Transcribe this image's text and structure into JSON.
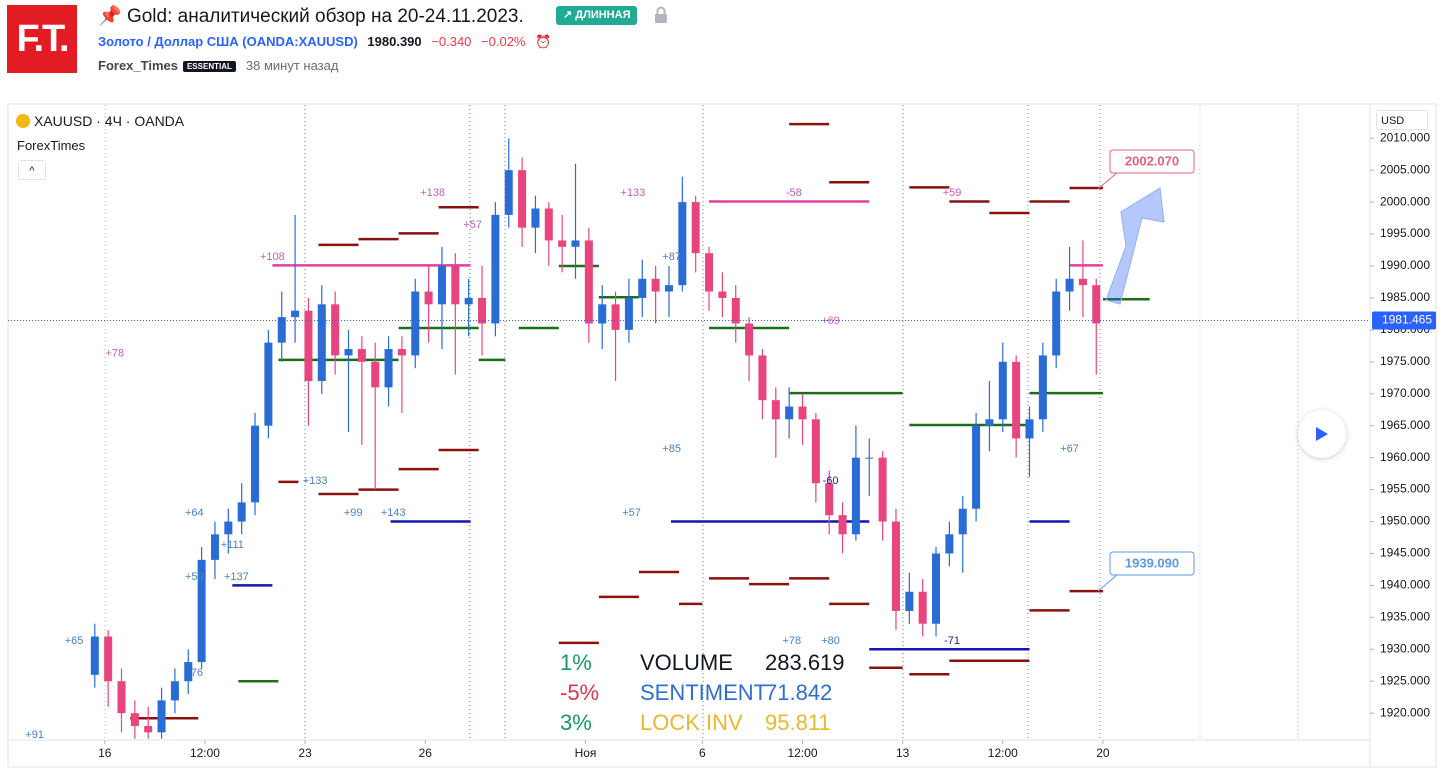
{
  "header": {
    "logo": "F.T.",
    "title": "Gold: аналитический обзор на 20-24.11.2023.",
    "badge": "ДЛИННАЯ",
    "symbol_name": "Золото / Доллар США",
    "symbol_code": "(OANDA:XAUUSD)",
    "price": "1980.390",
    "change": "−0.340",
    "change_pct": "−0.02%",
    "author": "Forex_Times",
    "author_badge": "ESSENTIAL",
    "time": "38 минут назад"
  },
  "chart_data": {
    "type": "candlestick",
    "legend": "XAUUSD · 4Ч · OANDA",
    "indicator": "ForexTimes",
    "currency": "USD",
    "colors": {
      "up": "#2a6cd6",
      "down": "#e8457e"
    },
    "xlim": [
      0,
      204
    ],
    "ylim": [
      1915.8,
      2015.2
    ],
    "xticks": [
      {
        "value": 14.5,
        "label": "16"
      },
      {
        "value": 29.5,
        "label": "12:00"
      },
      {
        "value": 44.5,
        "label": "23"
      },
      {
        "value": 62.5,
        "label": "26"
      },
      {
        "value": 86.5,
        "label": "Ноя"
      },
      {
        "value": 104,
        "label": "6"
      },
      {
        "value": 119,
        "label": "12:00"
      },
      {
        "value": 134,
        "label": "13"
      },
      {
        "value": 149,
        "label": "12:00"
      },
      {
        "value": 164,
        "label": "20"
      }
    ],
    "yticks": [
      {
        "value": 1920,
        "label": "1920.000"
      },
      {
        "value": 1925,
        "label": "1925.000"
      },
      {
        "value": 1930,
        "label": "1930.000"
      },
      {
        "value": 1935,
        "label": "1935.000"
      },
      {
        "value": 1940,
        "label": "1940.000"
      },
      {
        "value": 1945,
        "label": "1945.000"
      },
      {
        "value": 1950,
        "label": "1950.000"
      },
      {
        "value": 1955,
        "label": "1955.000"
      },
      {
        "value": 1960,
        "label": "1960.000"
      },
      {
        "value": 1965,
        "label": "1965.000"
      },
      {
        "value": 1970,
        "label": "1970.000"
      },
      {
        "value": 1975,
        "label": "1975.000"
      },
      {
        "value": 1980,
        "label": "1980.000"
      },
      {
        "value": 1985,
        "label": "1985.000"
      },
      {
        "value": 1990,
        "label": "1990.000"
      },
      {
        "value": 1995,
        "label": "1995.000"
      },
      {
        "value": 2000,
        "label": "2000.000"
      },
      {
        "value": 2005,
        "label": "2005.000"
      },
      {
        "value": 2010,
        "label": "2010.000"
      }
    ],
    "x": [
      13,
      15,
      17,
      19,
      21,
      23,
      25,
      27,
      29,
      31,
      33,
      35,
      37,
      39,
      41,
      43,
      45,
      47,
      49,
      51,
      53,
      55,
      57,
      59,
      61,
      63,
      65,
      67,
      69,
      71,
      73,
      75,
      77,
      79,
      81,
      83,
      85,
      87,
      89,
      91,
      93,
      95,
      97,
      99,
      101,
      103,
      105,
      107,
      109,
      111,
      113,
      115,
      117,
      119,
      121,
      123,
      125,
      127,
      129,
      131,
      133,
      135,
      137,
      139,
      141,
      143,
      145,
      147,
      149,
      151,
      153,
      155,
      157,
      159,
      161,
      163
    ],
    "ohlc": [
      [
        1926,
        1934,
        1924,
        1932
      ],
      [
        1932,
        1933,
        1921,
        1925
      ],
      [
        1925,
        1927,
        1917,
        1920
      ],
      [
        1920,
        1922,
        1916,
        1918
      ],
      [
        1918,
        1921,
        1916,
        1917
      ],
      [
        1917,
        1924,
        1916,
        1922
      ],
      [
        1922,
        1927,
        1920,
        1925
      ],
      [
        1925,
        1930,
        1923,
        1928
      ],
      [
        1928,
        1946,
        1927,
        1944
      ],
      [
        1944,
        1950,
        1941,
        1948
      ],
      [
        1948,
        1952,
        1945,
        1950
      ],
      [
        1950,
        1956,
        1948,
        1953
      ],
      [
        1953,
        1967,
        1951,
        1965
      ],
      [
        1965,
        1980,
        1963,
        1978
      ],
      [
        1978,
        1986,
        1975,
        1982
      ],
      [
        1982,
        1998,
        1978,
        1983
      ],
      [
        1983,
        1985,
        1965,
        1972
      ],
      [
        1972,
        1987,
        1970,
        1984
      ],
      [
        1984,
        1986,
        1973,
        1976
      ],
      [
        1976,
        1980,
        1964,
        1977
      ],
      [
        1977,
        1979,
        1962,
        1975
      ],
      [
        1975,
        1978,
        1955,
        1971
      ],
      [
        1971,
        1979,
        1968,
        1977
      ],
      [
        1977,
        1979,
        1967,
        1976
      ],
      [
        1976,
        1988,
        1974,
        1986
      ],
      [
        1986,
        1990,
        1978,
        1984
      ],
      [
        1984,
        1993,
        1977,
        1990
      ],
      [
        1990,
        1992,
        1973,
        1984
      ],
      [
        1984,
        1988,
        1979,
        1985
      ],
      [
        1985,
        1990,
        1976,
        1981
      ],
      [
        1981,
        2000,
        1979,
        1998
      ],
      [
        1998,
        2010,
        1996,
        2005
      ],
      [
        2005,
        2007,
        1993,
        1996
      ],
      [
        1996,
        2001,
        1992,
        1999
      ],
      [
        1999,
        2000,
        1990,
        1994
      ],
      [
        1994,
        1998,
        1989,
        1993
      ],
      [
        1993,
        2006,
        1988,
        1994
      ],
      [
        1994,
        1996,
        1978,
        1981
      ],
      [
        1981,
        1987,
        1977,
        1984
      ],
      [
        1984,
        1986,
        1972,
        1980
      ],
      [
        1980,
        1988,
        1978,
        1985
      ],
      [
        1985,
        1991,
        1982,
        1988
      ],
      [
        1988,
        1990,
        1981,
        1986
      ],
      [
        1986,
        1990,
        1982,
        1987
      ],
      [
        1987,
        2004,
        1986,
        2000
      ],
      [
        2000,
        2001,
        1989,
        1992
      ],
      [
        1992,
        1993,
        1983,
        1986
      ],
      [
        1986,
        1989,
        1982,
        1985
      ],
      [
        1985,
        1987,
        1978,
        1981
      ],
      [
        1981,
        1982,
        1972,
        1976
      ],
      [
        1976,
        1977,
        1966,
        1969
      ],
      [
        1969,
        1971,
        1960,
        1966
      ],
      [
        1966,
        1971,
        1963,
        1968
      ],
      [
        1968,
        1970,
        1962,
        1966
      ],
      [
        1966,
        1967,
        1953,
        1956
      ],
      [
        1956,
        1958,
        1948,
        1951
      ],
      [
        1951,
        1953,
        1945,
        1948
      ],
      [
        1948,
        1965,
        1947,
        1960
      ],
      [
        1960,
        1963,
        1954,
        1960
      ],
      [
        1960,
        1961,
        1947,
        1950
      ],
      [
        1950,
        1952,
        1933,
        1936
      ],
      [
        1936,
        1942,
        1934,
        1939
      ],
      [
        1939,
        1941,
        1932,
        1934
      ],
      [
        1934,
        1946,
        1932,
        1945
      ],
      [
        1945,
        1950,
        1943,
        1948
      ],
      [
        1948,
        1954,
        1942,
        1952
      ],
      [
        1952,
        1967,
        1950,
        1965
      ],
      [
        1965,
        1972,
        1961,
        1966
      ],
      [
        1966,
        1978,
        1964,
        1975
      ],
      [
        1975,
        1976,
        1960,
        1963
      ],
      [
        1963,
        1968,
        1957,
        1966
      ],
      [
        1966,
        1978,
        1964,
        1976
      ],
      [
        1976,
        1988,
        1974,
        1986
      ],
      [
        1986,
        1993,
        1983,
        1988
      ],
      [
        1988,
        1994,
        1982,
        1987
      ],
      [
        1987,
        1988,
        1973,
        1981
      ]
    ],
    "levels": [
      {
        "value": 1919.2,
        "from": 18.3,
        "to": 28.5,
        "color": "#8b1010"
      },
      {
        "value": 1925,
        "from": 34.5,
        "to": 40.5,
        "color": "#1b6e1b"
      },
      {
        "value": 1940,
        "from": 33.6,
        "to": 39.6,
        "color": "#1515b0"
      },
      {
        "value": 1956.2,
        "from": 40.5,
        "to": 43.5,
        "color": "#8b1010"
      },
      {
        "value": 1954.3,
        "from": 46.5,
        "to": 52.5,
        "color": "#8b1010"
      },
      {
        "value": 1955,
        "from": 52.5,
        "to": 58.5,
        "color": "#8b1010"
      },
      {
        "value": 1950,
        "from": 57.3,
        "to": 69.3,
        "color": "#1515b0"
      },
      {
        "value": 1958.2,
        "from": 58.5,
        "to": 64.5,
        "color": "#8b1010"
      },
      {
        "value": 1961.2,
        "from": 64.5,
        "to": 70.5,
        "color": "#8b1010"
      },
      {
        "value": 1975.3,
        "from": 40.5,
        "to": 58.5,
        "color": "#1b6e1b"
      },
      {
        "value": 1980.3,
        "from": 58.5,
        "to": 70.5,
        "color": "#1b6e1b"
      },
      {
        "value": 1993.3,
        "from": 46.5,
        "to": 52.5,
        "color": "#8b1010"
      },
      {
        "value": 1994.2,
        "from": 52.5,
        "to": 58.5,
        "color": "#8b1010"
      },
      {
        "value": 1995.1,
        "from": 58.5,
        "to": 64.5,
        "color": "#8b1010"
      },
      {
        "value": 1999.2,
        "from": 64.5,
        "to": 70.5,
        "color": "#8b1010"
      },
      {
        "value": 1990.1,
        "from": 39.6,
        "to": 69.3,
        "color": "#e040a0"
      },
      {
        "value": 1975.3,
        "from": 70.5,
        "to": 74.5,
        "color": "#1b6e1b"
      },
      {
        "value": 1980.3,
        "from": 76.5,
        "to": 82.5,
        "color": "#1b6e1b"
      },
      {
        "value": 1990,
        "from": 82.5,
        "to": 88.5,
        "color": "#1b6e1b"
      },
      {
        "value": 1985.1,
        "from": 88.5,
        "to": 94.5,
        "color": "#1b6e1b"
      },
      {
        "value": 1931,
        "from": 82.5,
        "to": 88.5,
        "color": "#8b1010"
      },
      {
        "value": 1938.2,
        "from": 88.5,
        "to": 94.5,
        "color": "#8b1010"
      },
      {
        "value": 1942.1,
        "from": 94.5,
        "to": 100.5,
        "color": "#8b1010"
      },
      {
        "value": 1937.1,
        "from": 100.5,
        "to": 104,
        "color": "#8b1010"
      },
      {
        "value": 2000.1,
        "from": 105,
        "to": 129,
        "color": "#e040a0"
      },
      {
        "value": 2012.2,
        "from": 117,
        "to": 123,
        "color": "#8b1010"
      },
      {
        "value": 2003.1,
        "from": 123,
        "to": 129,
        "color": "#8b1010"
      },
      {
        "value": 1980.3,
        "from": 105,
        "to": 117,
        "color": "#1b6e1b"
      },
      {
        "value": 1970.1,
        "from": 117,
        "to": 134,
        "color": "#1b6e1b"
      },
      {
        "value": 1950,
        "from": 99.3,
        "to": 129,
        "color": "#1515b0"
      },
      {
        "value": 1941.1,
        "from": 105,
        "to": 111,
        "color": "#8b1010"
      },
      {
        "value": 1940.2,
        "from": 111,
        "to": 117,
        "color": "#8b1010"
      },
      {
        "value": 1941.1,
        "from": 117,
        "to": 123,
        "color": "#8b1010"
      },
      {
        "value": 1937.1,
        "from": 123,
        "to": 129,
        "color": "#8b1010"
      },
      {
        "value": 1927.1,
        "from": 129,
        "to": 134,
        "color": "#8b1010"
      },
      {
        "value": 1930,
        "from": 129,
        "to": 153,
        "color": "#1515b0"
      },
      {
        "value": 1926.1,
        "from": 135,
        "to": 141,
        "color": "#8b1010"
      },
      {
        "value": 1928.2,
        "from": 141,
        "to": 153,
        "color": "#8b1010"
      },
      {
        "value": 1965.1,
        "from": 135,
        "to": 153,
        "color": "#1b6e1b"
      },
      {
        "value": 2002.3,
        "from": 135,
        "to": 141,
        "color": "#8b1010"
      },
      {
        "value": 2000.1,
        "from": 141,
        "to": 147,
        "color": "#8b1010"
      },
      {
        "value": 1998.3,
        "from": 147,
        "to": 153,
        "color": "#8b1010"
      },
      {
        "value": 2000.1,
        "from": 153,
        "to": 159,
        "color": "#8b1010"
      },
      {
        "value": 2002.2,
        "from": 159,
        "to": 164,
        "color": "#8b1010"
      },
      {
        "value": 1990.1,
        "from": 159,
        "to": 164,
        "color": "#e040a0"
      },
      {
        "value": 1984.8,
        "from": 164,
        "to": 171,
        "color": "#1b6e1b"
      },
      {
        "value": 1970.1,
        "from": 153,
        "to": 164,
        "color": "#1b6e1b"
      },
      {
        "value": 1950,
        "from": 153,
        "to": 159,
        "color": "#1515b0"
      },
      {
        "value": 1936.1,
        "from": 153,
        "to": 159,
        "color": "#8b1010"
      },
      {
        "value": 1939.1,
        "from": 159,
        "to": 164,
        "color": "#8b1010"
      }
    ],
    "markers": [
      {
        "text": "+78",
        "x": 16,
        "y": 1976.3,
        "color": "#c65cc0"
      },
      {
        "text": "+65",
        "x": 9.9,
        "y": 1931.3,
        "color": "#4a7fc8"
      },
      {
        "text": "+91",
        "x": 4,
        "y": 1916.6,
        "color": "#4a7fc8"
      },
      {
        "text": "+64",
        "x": 27.9,
        "y": 1951.3,
        "color": "#4a7fc8"
      },
      {
        "text": "+111",
        "x": 33.6,
        "y": 1946.3,
        "color": "#4a7fc8"
      },
      {
        "text": "+59",
        "x": 27.9,
        "y": 1941.3,
        "color": "#4a7fc8"
      },
      {
        "text": "+137",
        "x": 34.2,
        "y": 1941.3,
        "color": "#4a7fc8"
      },
      {
        "text": "76",
        "x": 28.3,
        "y": 1926.3,
        "color": "#4a7fc8"
      },
      {
        "text": "+108",
        "x": 39.6,
        "y": 1991.4,
        "color": "#c65cc0"
      },
      {
        "text": "+133",
        "x": 46,
        "y": 1956.3,
        "color": "#4a7fc8"
      },
      {
        "text": "+99",
        "x": 51.7,
        "y": 1951.3,
        "color": "#4a7fc8"
      },
      {
        "text": "+143",
        "x": 57.7,
        "y": 1951.3,
        "color": "#4a7fc8"
      },
      {
        "text": "+138",
        "x": 63.6,
        "y": 2001.4,
        "color": "#c65cc0"
      },
      {
        "text": "+57",
        "x": 69.6,
        "y": 1996.4,
        "color": "#c65cc0"
      },
      {
        "text": "+133",
        "x": 93.6,
        "y": 2001.4,
        "color": "#c65cc0"
      },
      {
        "text": "+87",
        "x": 99.4,
        "y": 1991.4,
        "color": "#4a7fc8"
      },
      {
        "text": "+85",
        "x": 99.4,
        "y": 1961.3,
        "color": "#4a7fc8"
      },
      {
        "text": "+57",
        "x": 93.4,
        "y": 1951.3,
        "color": "#4a7fc8"
      },
      {
        "text": "-58",
        "x": 117.7,
        "y": 2001.4,
        "color": "#c65cc0"
      },
      {
        "text": "+69",
        "x": 123.2,
        "y": 1981.4,
        "color": "#c65cc0"
      },
      {
        "text": "-60",
        "x": 123.2,
        "y": 1956.3,
        "color": "#1a1a8c"
      },
      {
        "text": "+78",
        "x": 117.4,
        "y": 1931.3,
        "color": "#4a7fc8"
      },
      {
        "text": "+80",
        "x": 123.2,
        "y": 1931.3,
        "color": "#4a7fc8"
      },
      {
        "text": "+59",
        "x": 141.4,
        "y": 2001.4,
        "color": "#c65cc0"
      },
      {
        "text": "-71",
        "x": 141.4,
        "y": 1931.3,
        "color": "#1a1a8c"
      },
      {
        "text": "+67",
        "x": 159,
        "y": 1961.3,
        "color": "#4a7fc8"
      }
    ],
    "last_price": 1981.465,
    "callouts": [
      {
        "value": 2002.07,
        "label": "2002.070",
        "color": "#e8627a"
      },
      {
        "value": 1939.09,
        "label": "1939.090",
        "color": "#5b9be8"
      }
    ]
  },
  "stats": [
    {
      "pct": "1%",
      "name": "VOLUME",
      "value": "283.619"
    },
    {
      "pct": "-5%",
      "name": "SENTIMENT",
      "value": "71.842"
    },
    {
      "pct": "3%",
      "name": "LOCK INV",
      "value": "95.811"
    }
  ]
}
